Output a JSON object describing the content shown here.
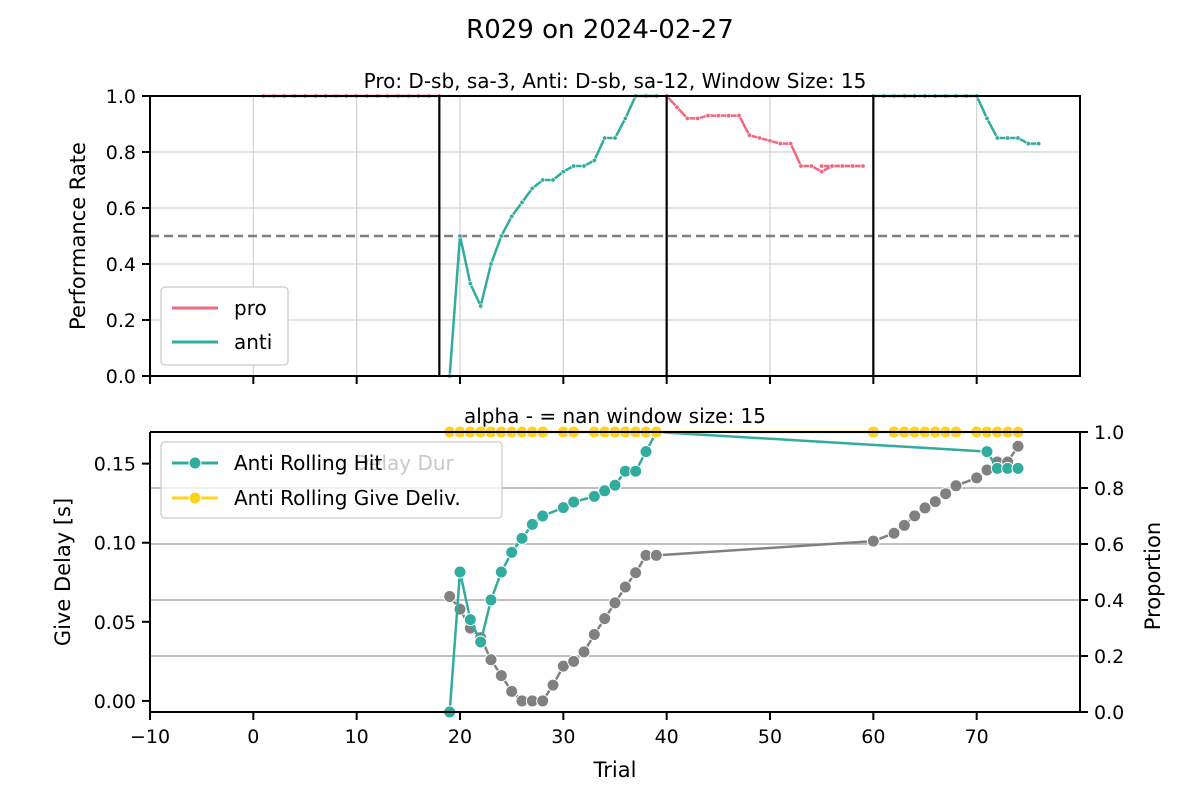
{
  "figure": {
    "title": "R029 on 2024-02-27"
  },
  "chart_data": [
    {
      "type": "line",
      "title": "Pro: D-sb, sa-3, Anti: D-sb, sa-12, Window Size: 15",
      "xlabel": "",
      "ylabel": "Performance Rate",
      "xlim": [
        -10,
        80
      ],
      "ylim": [
        0,
        1.0
      ],
      "xticks": [
        -10,
        0,
        10,
        20,
        30,
        40,
        50,
        60,
        70
      ],
      "yticks": [
        0.0,
        0.2,
        0.4,
        0.6,
        0.8,
        1.0
      ],
      "grid": true,
      "legend_position": "lower-left",
      "reference_line": {
        "y": 0.5,
        "style": "dashed",
        "color": "#808080"
      },
      "block_boundaries": [
        18,
        40,
        60
      ],
      "series": [
        {
          "name": "pro",
          "color": "#f0687e",
          "segments": [
            {
              "x": [
                1,
                2,
                3,
                4,
                5,
                6,
                7,
                8,
                9,
                10,
                11,
                12,
                13,
                14,
                15,
                16,
                17,
                18
              ],
              "y": [
                1,
                1,
                1,
                1,
                1,
                1,
                1,
                1,
                1,
                1,
                1,
                1,
                1,
                1,
                1,
                1,
                1,
                1
              ]
            },
            {
              "x": [
                40,
                41,
                42,
                43,
                44,
                45,
                46,
                47,
                48,
                49,
                50,
                51,
                52,
                53,
                54,
                55,
                56,
                57,
                58,
                59
              ],
              "y": [
                1.0,
                0.96,
                0.92,
                0.92,
                0.93,
                0.93,
                0.93,
                0.93,
                0.86,
                0.85,
                0.84,
                0.83,
                0.83,
                0.75,
                0.75,
                0.73,
                0.75,
                0.75,
                0.75,
                0.75
              ]
            },
            {
              "x": [
                55,
                56,
                57,
                58,
                59
              ],
              "y": [
                0.75,
                0.75,
                0.75,
                0.75,
                0.75
              ]
            }
          ]
        },
        {
          "name": "anti",
          "color": "#32ac9f",
          "segments": [
            {
              "x": [
                19,
                20,
                21,
                22,
                23,
                24,
                25,
                26,
                27,
                28,
                29,
                30,
                31,
                32,
                33,
                34,
                35,
                36,
                37,
                38,
                39
              ],
              "y": [
                0.0,
                0.5,
                0.33,
                0.25,
                0.4,
                0.5,
                0.57,
                0.62,
                0.67,
                0.7,
                0.7,
                0.73,
                0.75,
                0.75,
                0.77,
                0.85,
                0.85,
                0.92,
                1.0,
                1.0,
                1.0
              ]
            },
            {
              "x": [
                60,
                61,
                62,
                63,
                64,
                65,
                66,
                67,
                68,
                69,
                70,
                71,
                72,
                73,
                74,
                75,
                76
              ],
              "y": [
                1,
                1,
                1,
                1,
                1,
                1,
                1,
                1,
                1,
                1,
                1,
                0.92,
                0.85,
                0.85,
                0.85,
                0.83,
                0.83
              ]
            }
          ]
        }
      ]
    },
    {
      "type": "line",
      "title": "alpha - = nan window size: 15",
      "xlabel": "Trial",
      "ylabel": "Give Delay [s]",
      "ylabel_right": "Proportion",
      "xlim": [
        -10,
        80
      ],
      "ylim": [
        -0.007,
        0.17
      ],
      "ylim_right": [
        0,
        1.0
      ],
      "xticks": [
        -10,
        0,
        10,
        20,
        30,
        40,
        50,
        60,
        70
      ],
      "yticks": [
        0.0,
        0.05,
        0.1,
        0.15
      ],
      "yticks_right": [
        0.0,
        0.2,
        0.4,
        0.6,
        0.8,
        1.0
      ],
      "grid": "right-axis horizontal",
      "legend_position": "upper-left",
      "legend_entries": [
        "Anti Rolling Delay Dur",
        "Anti Rolling Hit",
        "Anti Rolling Give Deliv."
      ],
      "series": [
        {
          "name": "Anti Rolling Delay Dur",
          "axis": "left",
          "color": "#808080",
          "x": [
            19,
            20,
            21,
            22,
            23,
            24,
            25,
            26,
            27,
            28,
            29,
            30,
            31,
            32,
            33,
            34,
            35,
            36,
            37,
            38,
            39,
            60,
            62,
            63,
            64,
            65,
            66,
            67,
            68,
            70,
            71,
            72,
            73,
            74
          ],
          "y": [
            0.066,
            0.058,
            0.046,
            0.04,
            0.026,
            0.016,
            0.006,
            0.0,
            0.0,
            0.0,
            0.01,
            0.022,
            0.025,
            0.031,
            0.042,
            0.052,
            0.062,
            0.072,
            0.081,
            0.092,
            0.092,
            0.101,
            0.106,
            0.111,
            0.117,
            0.122,
            0.126,
            0.131,
            0.136,
            0.141,
            0.146,
            0.151,
            0.151,
            0.161
          ]
        },
        {
          "name": "Anti Rolling Hit",
          "axis": "right",
          "color": "#32ac9f",
          "x": [
            19,
            20,
            21,
            22,
            23,
            24,
            25,
            26,
            27,
            28,
            30,
            31,
            33,
            34,
            35,
            36,
            37,
            38,
            39,
            71,
            72,
            73,
            74
          ],
          "y": [
            0.0,
            0.5,
            0.33,
            0.25,
            0.4,
            0.5,
            0.57,
            0.62,
            0.67,
            0.7,
            0.73,
            0.75,
            0.77,
            0.79,
            0.81,
            0.86,
            0.86,
            0.93,
            1.0,
            0.93,
            0.87,
            0.87,
            0.87
          ]
        },
        {
          "name": "Anti Rolling Give Deliv.",
          "axis": "right",
          "color": "#ffd21c",
          "x": [
            19,
            20,
            21,
            22,
            23,
            24,
            25,
            26,
            27,
            28,
            30,
            31,
            33,
            34,
            35,
            36,
            37,
            38,
            39,
            60,
            62,
            63,
            64,
            65,
            66,
            67,
            68,
            70,
            71,
            72,
            73,
            74
          ],
          "y": [
            1,
            1,
            1,
            1,
            1,
            1,
            1,
            1,
            1,
            1,
            1,
            1,
            1,
            1,
            1,
            1,
            1,
            1,
            1,
            1,
            1,
            1,
            1,
            1,
            1,
            1,
            1,
            1,
            1,
            1,
            1,
            1
          ]
        }
      ]
    }
  ]
}
